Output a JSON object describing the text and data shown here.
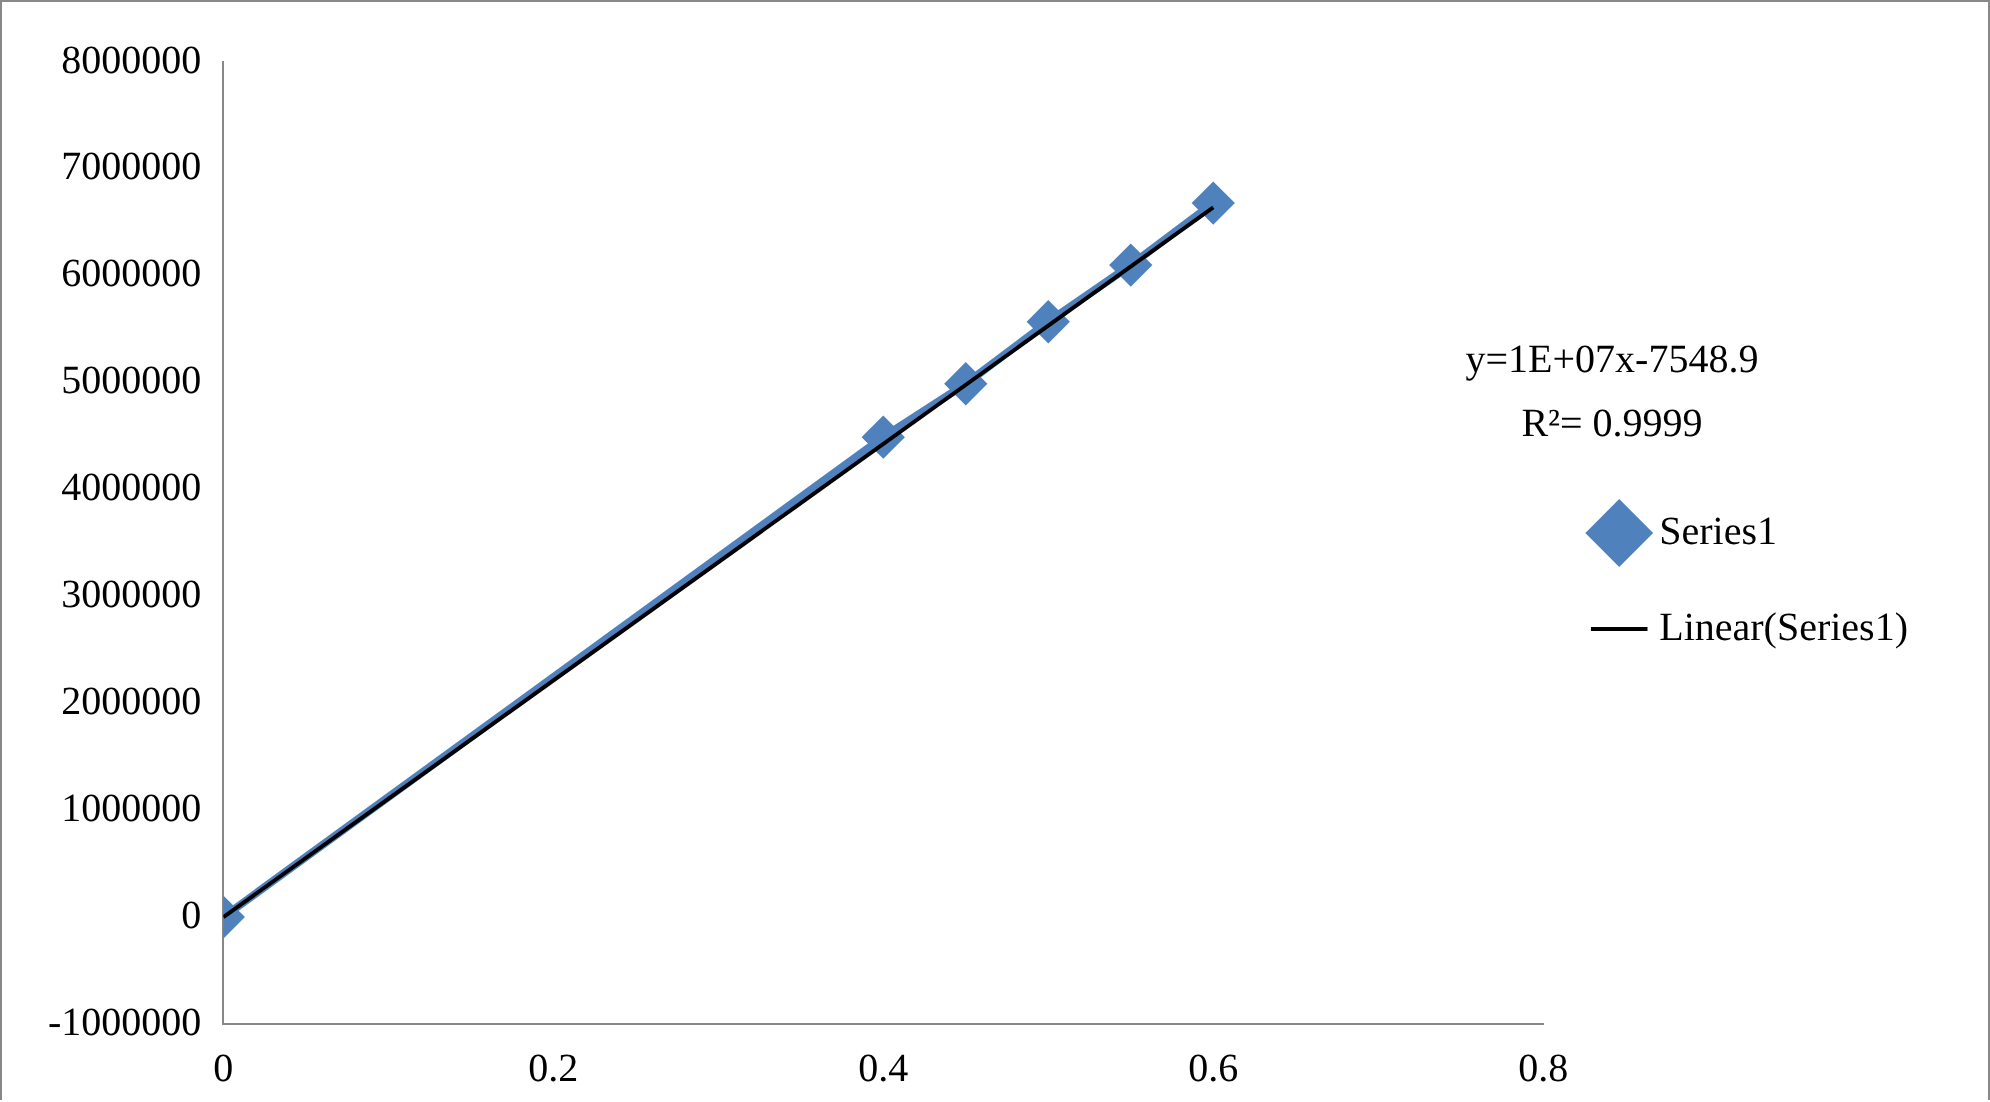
{
  "chart_data": {
    "type": "line",
    "x": [
      0,
      0.4,
      0.45,
      0.5,
      0.55,
      0.6
    ],
    "series": [
      {
        "name": "Series1",
        "color": "#4f81bd",
        "values": [
          0,
          4490000,
          4990000,
          5570000,
          6100000,
          6680000
        ],
        "marker": "diamond"
      },
      {
        "name": "Linear(Series1)",
        "color": "#000000",
        "type": "line",
        "x": [
          0,
          0.6
        ],
        "values": [
          0,
          6640000
        ],
        "marker": "none"
      }
    ],
    "xlim": [
      0,
      0.8
    ],
    "xticks": [
      0,
      0.2,
      0.4,
      0.6,
      0.8
    ],
    "ylim": [
      -1000000,
      8000000
    ],
    "yticks": [
      -1000000,
      0,
      1000000,
      2000000,
      3000000,
      4000000,
      5000000,
      6000000,
      7000000,
      8000000
    ],
    "grid": false,
    "legend": "right",
    "annotations": [
      "y=1E+07x-7548.9",
      "R²= 0.9999"
    ]
  }
}
